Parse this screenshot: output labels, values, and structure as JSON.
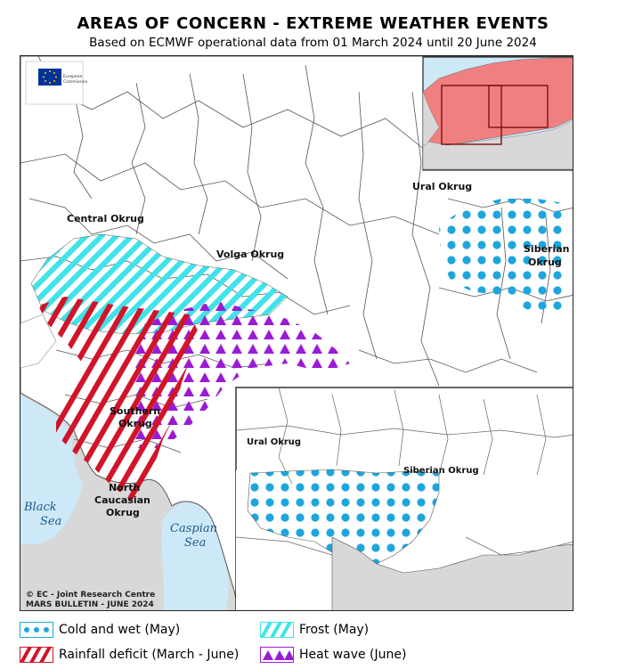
{
  "title": "AREAS OF CONCERN - EXTREME WEATHER EVENTS",
  "subtitle": "Based on ECMWF operational data from 01 March 2024 until 20 June 2024",
  "colors": {
    "cold_wet": "#1ea6dc",
    "frost": "#3fe3e8",
    "rainfall_deficit": "#d0142a",
    "heat_wave": "#9a1bd6",
    "sea": "#cde9f7",
    "land_outside": "#d8d8d8",
    "land": "#ffffff"
  },
  "map_labels": {
    "central": "Central Okrug",
    "volga": "Volga Okrug",
    "ural": "Ural Okrug",
    "siberian_1": "Siberian",
    "siberian_2": "Okrug",
    "southern_1": "Southern",
    "southern_2": "Okrug",
    "north_caucasian_1": "North",
    "north_caucasian_2": "Caucasian",
    "north_caucasian_3": "Okrug",
    "black_sea_1": "Black",
    "black_sea_2": "Sea",
    "caspian_sea_1": "Caspian",
    "caspian_sea_2": "Sea"
  },
  "inset_labels": {
    "ural": "Ural Okrug",
    "siberian": "Siberian Okrug"
  },
  "logo": {
    "line1": "European",
    "line2": "Commission"
  },
  "credits": {
    "line1": "© EC - Joint Research Centre",
    "line2": "MARS BULLETIN - JUNE 2024"
  },
  "legend": [
    {
      "id": "cold_wet",
      "label": "Cold and wet (May)",
      "icon": "dots-swatch"
    },
    {
      "id": "frost",
      "label": "Frost (May)",
      "icon": "cyan-stripe-swatch"
    },
    {
      "id": "rainfall_deficit",
      "label": "Rainfall deficit (March - June)",
      "icon": "red-stripe-swatch"
    },
    {
      "id": "heat_wave",
      "label": "Heat wave (June)",
      "icon": "triangle-swatch"
    }
  ]
}
